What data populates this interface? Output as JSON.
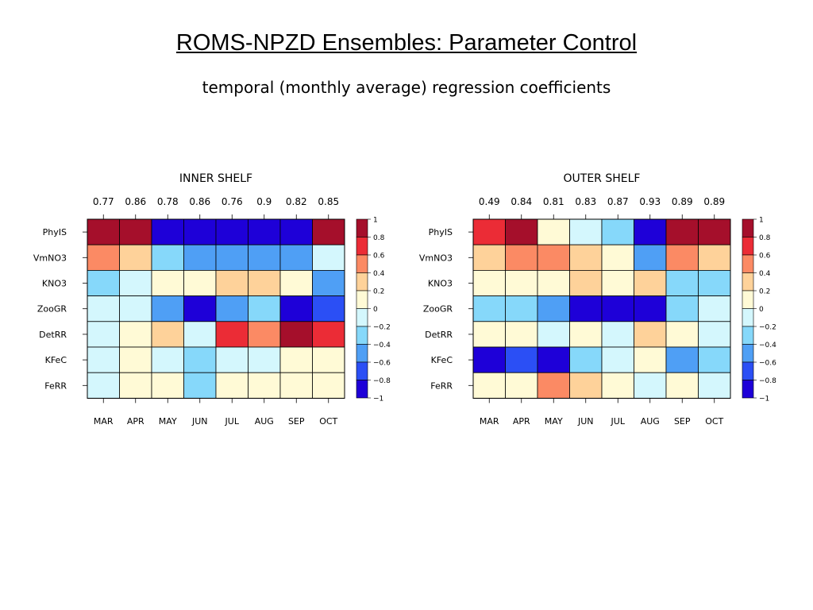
{
  "title": "ROMS-NPZD Ensembles: Parameter Control",
  "subtitle": "temporal (monthly average) regression coefficients",
  "colors": {
    "scale": [
      "#1e00d8",
      "#2b4ff5",
      "#4f9ff5",
      "#86d8fa",
      "#d4f7fd",
      "#fffad6",
      "#fed29a",
      "#fb8a64",
      "#eb2c36",
      "#a50f2b"
    ],
    "grid": "#000000"
  },
  "chart_data": [
    {
      "type": "heatmap",
      "title": "INNER SHELF",
      "columns": [
        "MAR",
        "APR",
        "MAY",
        "JUN",
        "JUL",
        "AUG",
        "SEP",
        "OCT"
      ],
      "column_stats": [
        "0.77",
        "0.86",
        "0.78",
        "0.86",
        "0.76",
        "0.9",
        "0.82",
        "0.85"
      ],
      "rows": [
        "PhyIS",
        "VmNO3",
        "KNO3",
        "ZooGR",
        "DetRR",
        "KFeC",
        "FeRR"
      ],
      "values": [
        [
          0.9,
          0.9,
          -0.9,
          -0.9,
          -0.9,
          -0.9,
          -0.9,
          0.9
        ],
        [
          0.5,
          0.3,
          -0.3,
          -0.5,
          -0.5,
          -0.5,
          -0.5,
          -0.1
        ],
        [
          -0.3,
          -0.1,
          0.1,
          0.1,
          0.3,
          0.3,
          0.1,
          -0.5
        ],
        [
          -0.1,
          -0.1,
          -0.5,
          -0.9,
          -0.5,
          -0.3,
          -0.9,
          -0.7
        ],
        [
          -0.1,
          0.1,
          0.3,
          -0.1,
          0.7,
          0.5,
          0.9,
          0.7
        ],
        [
          -0.1,
          0.1,
          -0.1,
          -0.3,
          -0.1,
          -0.1,
          0.1,
          0.1
        ],
        [
          -0.1,
          0.1,
          0.1,
          -0.3,
          0.1,
          0.1,
          0.1,
          0.1
        ]
      ],
      "colorbar_ticks": [
        "1",
        "0.8",
        "0.6",
        "0.4",
        "0.2",
        "0",
        "−0.2",
        "−0.4",
        "−0.6",
        "−0.8",
        "−1"
      ],
      "zlim": [
        -1,
        1
      ]
    },
    {
      "type": "heatmap",
      "title": "OUTER SHELF",
      "columns": [
        "MAR",
        "APR",
        "MAY",
        "JUN",
        "JUL",
        "AUG",
        "SEP",
        "OCT"
      ],
      "column_stats": [
        "0.49",
        "0.84",
        "0.81",
        "0.83",
        "0.87",
        "0.93",
        "0.89",
        "0.89"
      ],
      "rows": [
        "PhyIS",
        "VmNO3",
        "KNO3",
        "ZooGR",
        "DetRR",
        "KFeC",
        "FeRR"
      ],
      "values": [
        [
          0.7,
          0.9,
          0.1,
          -0.1,
          -0.3,
          -0.9,
          0.9,
          0.9
        ],
        [
          0.3,
          0.5,
          0.5,
          0.3,
          0.1,
          -0.5,
          0.5,
          0.3
        ],
        [
          0.1,
          0.1,
          0.1,
          0.3,
          0.1,
          0.3,
          -0.3,
          -0.3
        ],
        [
          -0.3,
          -0.3,
          -0.5,
          -0.9,
          -0.9,
          -0.9,
          -0.3,
          -0.1
        ],
        [
          0.1,
          0.1,
          -0.1,
          0.1,
          -0.1,
          0.3,
          0.1,
          -0.1
        ],
        [
          -0.9,
          -0.7,
          -0.9,
          -0.3,
          -0.1,
          0.1,
          -0.5,
          -0.3
        ],
        [
          0.1,
          0.1,
          0.5,
          0.3,
          0.1,
          -0.1,
          0.1,
          -0.1
        ]
      ],
      "colorbar_ticks": [
        "1",
        "0.8",
        "0.6",
        "0.4",
        "0.2",
        "0",
        "−0.2",
        "−0.4",
        "−0.6",
        "−0.8",
        "−1"
      ],
      "zlim": [
        -1,
        1
      ]
    }
  ]
}
